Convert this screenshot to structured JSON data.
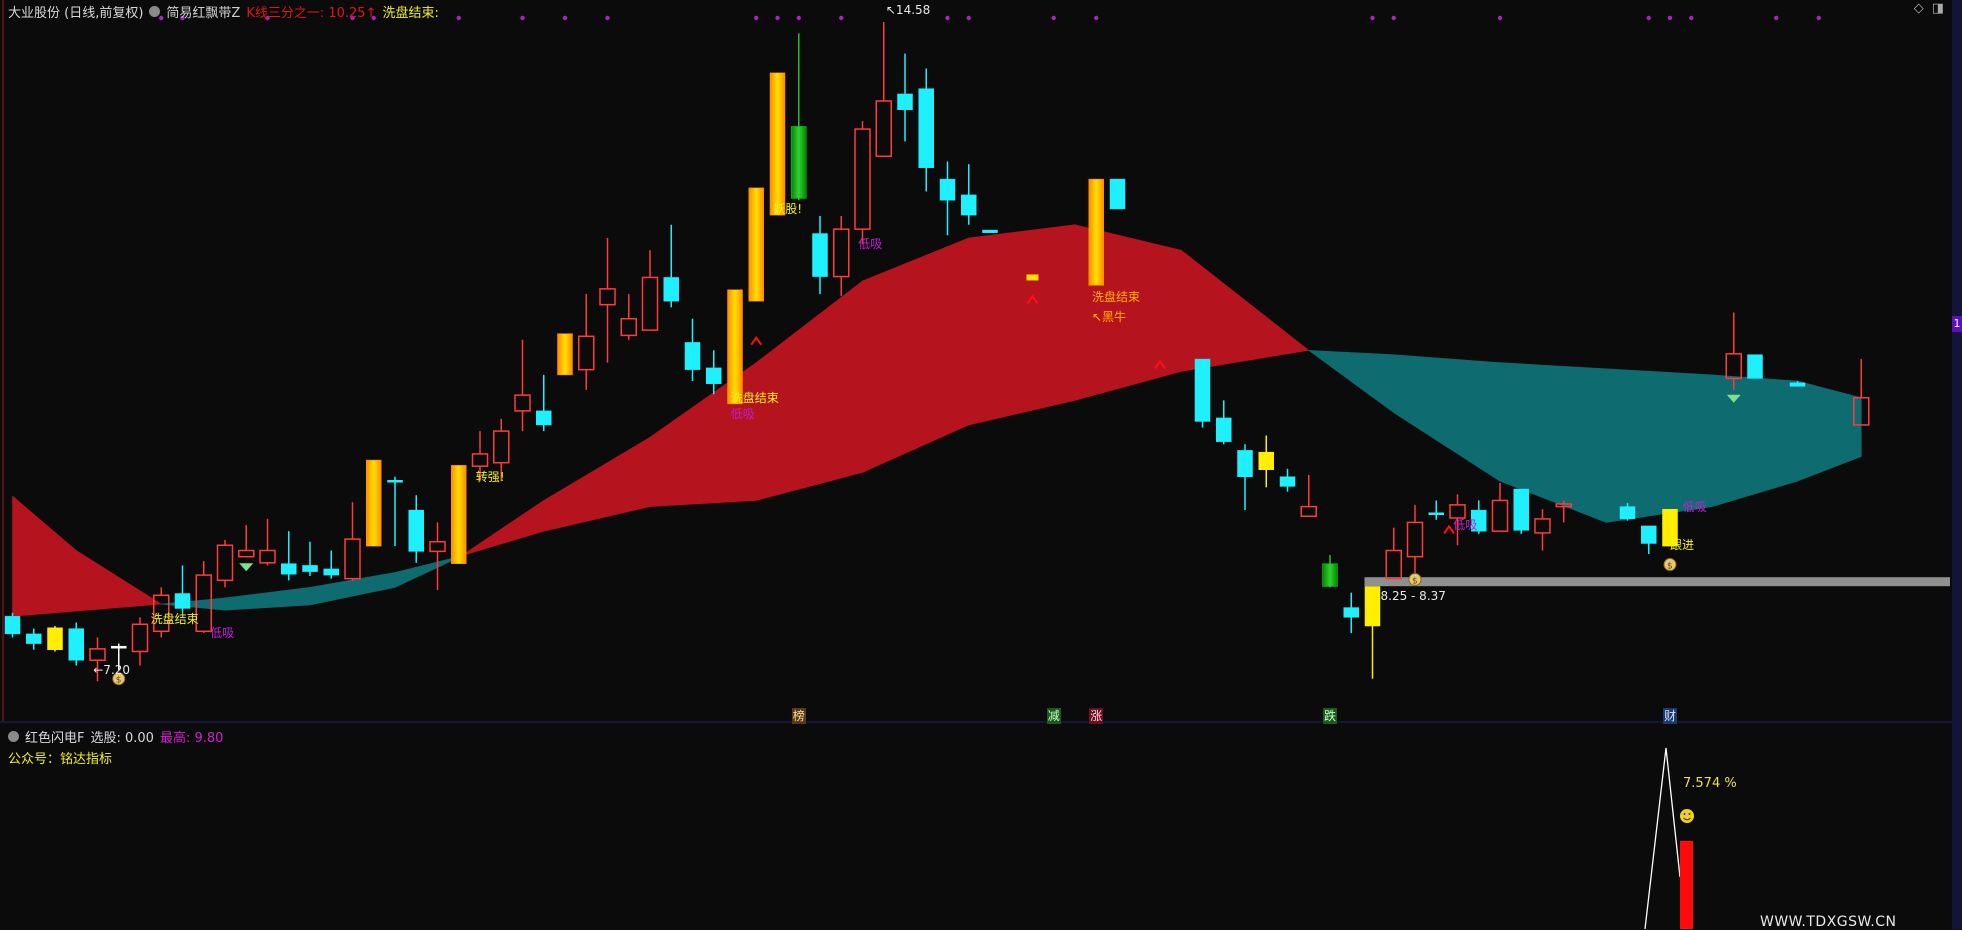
{
  "header": {
    "stock": "大业股份 (日线,前复权)",
    "indicator": "简易红飘带Z",
    "kline_third": "K线三分之一: 10.25↑",
    "wash_end": "洗盘结束:"
  },
  "top_icons": {
    "diamond": "◇",
    "panel": "◨"
  },
  "right_marker": "1",
  "colors": {
    "up": "#ff3b3b",
    "down": "#1ff0ff",
    "yellow": "#ffee00",
    "band_red": "#b5141e",
    "band_teal": "#0e6b6f",
    "zone_gray": "#8f8f8f",
    "dot": "#b020c8"
  },
  "chart_data": {
    "type": "candlestick",
    "price_range": [
      7.0,
      14.83
    ],
    "candles_fields": [
      "bar",
      "open",
      "close",
      "high",
      "low",
      "kind"
    ],
    "candles": [
      [
        0,
        7.81,
        7.61,
        7.85,
        7.57,
        "down"
      ],
      [
        1,
        7.61,
        7.5,
        7.67,
        7.43,
        "down"
      ],
      [
        2,
        7.43,
        7.68,
        7.7,
        7.41,
        "yellow"
      ],
      [
        3,
        7.67,
        7.31,
        7.74,
        7.25,
        "down"
      ],
      [
        4,
        7.31,
        7.44,
        7.57,
        7.07,
        "up"
      ],
      [
        5,
        7.47,
        7.47,
        7.5,
        7.2,
        "doji"
      ],
      [
        6,
        7.41,
        7.72,
        7.8,
        7.25,
        "up"
      ],
      [
        7,
        7.64,
        8.05,
        8.14,
        7.57,
        "up"
      ],
      [
        8,
        8.07,
        7.9,
        8.39,
        7.85,
        "down"
      ],
      [
        9,
        7.64,
        8.28,
        8.44,
        7.62,
        "up"
      ],
      [
        10,
        8.22,
        8.62,
        8.68,
        8.14,
        "up"
      ],
      [
        11,
        8.49,
        8.56,
        8.85,
        8.49,
        "up"
      ],
      [
        12,
        8.42,
        8.56,
        8.92,
        8.39,
        "up"
      ],
      [
        13,
        8.41,
        8.29,
        8.78,
        8.22,
        "down"
      ],
      [
        14,
        8.39,
        8.32,
        8.66,
        8.27,
        "down"
      ],
      [
        15,
        8.35,
        8.28,
        8.56,
        8.24,
        "down"
      ],
      [
        16,
        8.24,
        8.69,
        9.11,
        8.21,
        "up"
      ],
      [
        17,
        8.61,
        9.59,
        9.59,
        8.61,
        "gold"
      ],
      [
        18,
        9.36,
        9.35,
        9.4,
        8.61,
        "down"
      ],
      [
        19,
        9.02,
        8.55,
        9.19,
        8.42,
        "down"
      ],
      [
        20,
        8.55,
        8.66,
        8.88,
        8.11,
        "up"
      ],
      [
        21,
        8.41,
        9.53,
        9.53,
        8.41,
        "gold"
      ],
      [
        22,
        9.52,
        9.66,
        9.92,
        9.35,
        "up"
      ],
      [
        23,
        9.56,
        9.92,
        10.06,
        9.35,
        "up"
      ],
      [
        24,
        10.15,
        10.33,
        10.96,
        9.92,
        "up"
      ],
      [
        25,
        10.15,
        9.99,
        10.56,
        9.92,
        "down"
      ],
      [
        26,
        10.56,
        11.03,
        11.03,
        10.56,
        "gold"
      ],
      [
        27,
        10.62,
        11.0,
        11.48,
        10.39,
        "up"
      ],
      [
        28,
        11.36,
        11.54,
        12.12,
        10.7,
        "up"
      ],
      [
        29,
        11.01,
        11.2,
        11.48,
        10.96,
        "up"
      ],
      [
        30,
        11.07,
        11.67,
        11.98,
        11.07,
        "up"
      ],
      [
        31,
        11.67,
        11.4,
        12.27,
        11.33,
        "down"
      ],
      [
        32,
        10.93,
        10.62,
        11.2,
        10.49,
        "down"
      ],
      [
        33,
        10.64,
        10.46,
        10.84,
        10.34,
        "down"
      ],
      [
        34,
        10.23,
        11.53,
        11.53,
        10.23,
        "gold"
      ],
      [
        35,
        11.4,
        12.69,
        12.69,
        11.4,
        "gold"
      ],
      [
        36,
        12.38,
        14.0,
        14.0,
        12.38,
        "gold"
      ],
      [
        37,
        13.39,
        12.57,
        14.45,
        12.55,
        "green"
      ],
      [
        38,
        12.17,
        11.68,
        12.37,
        11.48,
        "down"
      ],
      [
        39,
        11.68,
        12.22,
        12.37,
        11.46,
        "up"
      ],
      [
        40,
        12.22,
        13.36,
        13.45,
        12.05,
        "up"
      ],
      [
        41,
        13.05,
        13.68,
        14.58,
        13.05,
        "up"
      ],
      [
        42,
        13.76,
        13.58,
        14.22,
        13.22,
        "down"
      ],
      [
        43,
        13.82,
        12.92,
        14.05,
        12.65,
        "down"
      ],
      [
        44,
        12.79,
        12.55,
        12.99,
        12.15,
        "down"
      ],
      [
        45,
        12.61,
        12.38,
        12.96,
        12.27,
        "down"
      ],
      [
        46,
        12.21,
        12.18,
        12.21,
        12.18,
        "down"
      ],
      [
        51,
        11.58,
        12.79,
        12.79,
        11.58,
        "gold"
      ],
      [
        52,
        12.79,
        12.45,
        12.79,
        12.45,
        "down"
      ],
      [
        56,
        10.74,
        10.03,
        10.74,
        9.96,
        "down"
      ],
      [
        57,
        10.07,
        9.8,
        10.27,
        9.77,
        "down"
      ],
      [
        58,
        9.7,
        9.4,
        9.77,
        9.02,
        "down"
      ],
      [
        59,
        9.68,
        9.48,
        9.87,
        9.28,
        "yellow"
      ],
      [
        60,
        9.4,
        9.29,
        9.49,
        9.23,
        "down"
      ],
      [
        61,
        8.95,
        9.06,
        9.42,
        8.95,
        "up"
      ],
      [
        62,
        8.41,
        8.15,
        8.51,
        8.14,
        "green"
      ],
      [
        63,
        7.91,
        7.8,
        8.08,
        7.62,
        "down"
      ],
      [
        64,
        7.7,
        8.15,
        8.15,
        7.1,
        "yellow"
      ],
      [
        65,
        8.24,
        8.56,
        8.82,
        8.24,
        "up"
      ],
      [
        66,
        8.49,
        8.88,
        9.08,
        8.27,
        "up"
      ],
      [
        67,
        8.99,
        8.98,
        9.13,
        8.91,
        "down"
      ],
      [
        68,
        8.93,
        9.08,
        9.2,
        8.62,
        "up"
      ],
      [
        69,
        9.02,
        8.78,
        9.13,
        8.75,
        "down"
      ],
      [
        70,
        8.78,
        9.13,
        9.33,
        8.78,
        "up"
      ],
      [
        71,
        9.26,
        8.79,
        9.26,
        8.75,
        "down"
      ],
      [
        72,
        8.76,
        8.92,
        9.03,
        8.56,
        "up"
      ],
      [
        73,
        9.06,
        9.09,
        9.13,
        8.88,
        "up"
      ],
      [
        76,
        9.06,
        8.92,
        9.1,
        8.9,
        "down"
      ],
      [
        77,
        8.84,
        8.64,
        8.84,
        8.52,
        "down"
      ],
      [
        78,
        8.61,
        9.03,
        9.03,
        8.61,
        "yellow"
      ],
      [
        81,
        10.52,
        10.8,
        11.27,
        10.39,
        "up"
      ],
      [
        82,
        10.79,
        10.52,
        10.79,
        10.52,
        "down"
      ],
      [
        84,
        10.47,
        10.43,
        10.49,
        10.43,
        "down"
      ],
      [
        87,
        9.99,
        10.3,
        10.74,
        9.99,
        "up"
      ]
    ],
    "ribbon": {
      "bars": [
        0,
        3,
        7,
        10,
        14,
        18,
        21,
        25,
        30,
        35,
        40,
        45,
        50,
        55,
        61,
        65,
        70,
        75,
        80,
        84,
        87
      ],
      "line_a": [
        9.18,
        8.56,
        7.95,
        7.88,
        7.94,
        8.14,
        8.48,
        9.13,
        9.85,
        10.7,
        11.63,
        12.12,
        12.27,
        11.98,
        10.84,
        10.13,
        9.35,
        8.88,
        9.06,
        9.35,
        9.63
      ],
      "line_b": [
        7.81,
        7.87,
        7.95,
        8.02,
        8.14,
        8.31,
        8.49,
        8.78,
        9.06,
        9.13,
        9.45,
        9.99,
        10.27,
        10.6,
        10.84,
        10.79,
        10.7,
        10.63,
        10.56,
        10.49,
        10.3
      ]
    },
    "zone": {
      "from_bar": 64,
      "low": 8.25,
      "high": 8.37,
      "label": "8.25 - 8.37"
    },
    "top_dots_bars": [
      7,
      8,
      12,
      16,
      17,
      21,
      24,
      26,
      28,
      35,
      36,
      37,
      39,
      44,
      45,
      49,
      51,
      64,
      65,
      70,
      77,
      78,
      79,
      83,
      85
    ],
    "annotations": [
      {
        "bar": 6.5,
        "price": 7.78,
        "text": "洗盘结束",
        "color": "#f0f020"
      },
      {
        "bar": 9.3,
        "price": 7.62,
        "text": "低吸",
        "color": "#c020d0"
      },
      {
        "bar": 3.8,
        "price": 7.2,
        "text": "←7.20",
        "color": "#e8e8e8"
      },
      {
        "bar": 21.8,
        "price": 9.4,
        "text": "转强!",
        "color": "#f0f020"
      },
      {
        "bar": 33.8,
        "price": 10.3,
        "text": "洗盘结束",
        "color": "#f0f020"
      },
      {
        "bar": 33.8,
        "price": 10.12,
        "text": "低吸",
        "color": "#c020d0"
      },
      {
        "bar": 35.8,
        "price": 12.45,
        "text": "妖股!",
        "color": "#f0f020"
      },
      {
        "bar": 39.8,
        "price": 12.05,
        "text": "低吸",
        "color": "#c020d0"
      },
      {
        "bar": 41.1,
        "price": 14.72,
        "text": "↖14.58",
        "color": "#e8e8e8"
      },
      {
        "bar": 50.8,
        "price": 11.45,
        "text": "洗盘结束",
        "color": "#ffb000"
      },
      {
        "bar": 50.8,
        "price": 11.22,
        "text": "↖黑牛",
        "color": "#ffb000"
      },
      {
        "bar": 67.8,
        "price": 8.85,
        "text": "低吸",
        "color": "#c020d0"
      },
      {
        "bar": 78.6,
        "price": 9.06,
        "text": "低吸",
        "color": "#c020d0"
      },
      {
        "bar": 78.0,
        "price": 8.62,
        "text": "跟进",
        "color": "#f0f020"
      }
    ],
    "markers": [
      {
        "bar": 11,
        "price": 8.38,
        "icon": "diamond-icon"
      },
      {
        "bar": 81,
        "price": 10.3,
        "icon": "diamond-icon"
      },
      {
        "bar": 5,
        "price": 7.1,
        "icon": "money-bag-icon"
      },
      {
        "bar": 66,
        "price": 8.23,
        "icon": "money-bag-icon"
      },
      {
        "bar": 78,
        "price": 8.4,
        "icon": "money-bag-icon"
      },
      {
        "bar": 35,
        "price": 10.95,
        "icon": "red-arrow-up-icon"
      },
      {
        "bar": 48,
        "price": 11.42,
        "icon": "red-arrow-up-icon"
      },
      {
        "bar": 54,
        "price": 10.68,
        "icon": "red-arrow-up-icon"
      },
      {
        "bar": 67.6,
        "price": 8.8,
        "icon": "red-arrow-up-icon"
      },
      {
        "bar": 48,
        "price": 11.67,
        "icon": "yellow-flag-icon"
      }
    ],
    "signals": [
      {
        "bar": 37,
        "text": "榜",
        "bg": "#5a3a14",
        "fg": "#ffd9a0"
      },
      {
        "bar": 49,
        "text": "减",
        "bg": "#1c5a1c",
        "fg": "#c8ffc8"
      },
      {
        "bar": 51,
        "text": "涨",
        "bg": "#6a1020",
        "fg": "#ffd0d8"
      },
      {
        "bar": 62,
        "text": "跌",
        "bg": "#1c5a1c",
        "fg": "#c8ffc8"
      },
      {
        "bar": 78,
        "text": "财",
        "bg": "#1a3a6a",
        "fg": "#cfe2ff"
      }
    ]
  },
  "sub_panel": {
    "name": "红色闪电F",
    "select": "选股: 0.00",
    "highest": "最高: 9.80",
    "account": "公众号：铭达指标",
    "percent": "7.574 %",
    "watermark": "WWW.TDXGSW.CN"
  }
}
